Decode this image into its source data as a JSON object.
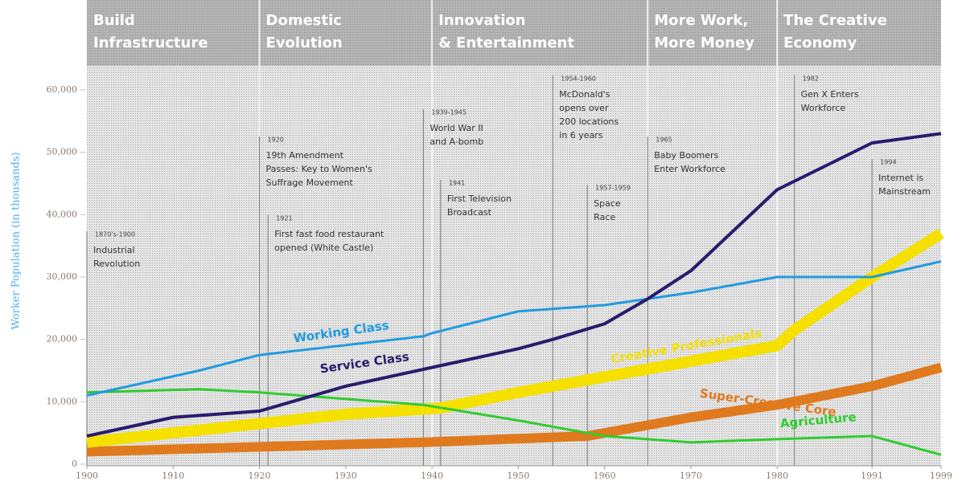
{
  "chart_data": {
    "type": "line",
    "y_axis_label": "Worker Population (in thousands)",
    "xlim": [
      1900,
      1999
    ],
    "xticks": [
      1900,
      1910,
      1920,
      1930,
      1940,
      1950,
      1960,
      1970,
      1980,
      1991,
      1999
    ],
    "ylim": [
      0,
      60000
    ],
    "yticks": [
      0,
      {
        "value": 10000,
        "label": "10,000"
      },
      {
        "value": 20000,
        "label": "20,000"
      },
      {
        "value": 30000,
        "label": "30,000"
      },
      {
        "value": 40000,
        "label": "40,000"
      },
      {
        "value": 50000,
        "label": "50,000"
      },
      {
        "value": 60000,
        "label": "60,000"
      }
    ],
    "eras": [
      {
        "x": 1900,
        "lines": [
          "Build",
          "Infrastructure"
        ]
      },
      {
        "x": 1920,
        "lines": [
          "Domestic",
          "Evolution"
        ]
      },
      {
        "x": 1940,
        "lines": [
          "Innovation",
          "& Entertainment"
        ]
      },
      {
        "x": 1965,
        "lines": [
          "More Work,",
          "More Money"
        ]
      },
      {
        "x": 1980,
        "lines": [
          "The Creative",
          "Economy"
        ]
      }
    ],
    "annotations": [
      {
        "x": 1900,
        "date": "1870's-1900",
        "lines": [
          "Industrial",
          "Revolution"
        ]
      },
      {
        "x": 1920,
        "date": "1920",
        "lines": [
          "19th Amendment",
          "Passes: Key to Women's",
          "Suffrage Movement"
        ]
      },
      {
        "x": 1921,
        "date": "1921",
        "lines": [
          "First fast food restaurant",
          "opened (White Castle)"
        ]
      },
      {
        "x": 1939,
        "date": "1939-1945",
        "lines": [
          "World War II",
          "and A-bomb"
        ]
      },
      {
        "x": 1941,
        "date": "1941",
        "lines": [
          "First Television",
          "Broadcast"
        ]
      },
      {
        "x": 1954,
        "date": "1954-1960",
        "lines": [
          "McDonald's",
          "opens over",
          "200 locations",
          "in 6 years"
        ]
      },
      {
        "x": 1958,
        "date": "1957-1959",
        "lines": [
          "Space",
          "Race"
        ]
      },
      {
        "x": 1965,
        "date": "1965",
        "lines": [
          "Baby Boomers",
          "Enter Workforce"
        ]
      },
      {
        "x": 1982,
        "date": "1982",
        "lines": [
          "Gen X Enters",
          "Workforce"
        ]
      },
      {
        "x": 1991,
        "date": "1994",
        "lines": [
          "Internet is",
          "Mainstream"
        ]
      }
    ],
    "series": [
      {
        "name": "Super-Creative Core",
        "color": "#e07a1e",
        "line_width": 12,
        "x": [
          1900,
          1939,
          1958,
          1970,
          1980,
          1991,
          1999
        ],
        "values": [
          2000,
          3500,
          4500,
          7500,
          9500,
          12500,
          15500
        ]
      },
      {
        "name": "Creative Professionals",
        "color": "#f5e000",
        "line_width": 14,
        "x": [
          1900,
          1920,
          1930,
          1941,
          1950,
          1960,
          1970,
          1980,
          1982,
          1991,
          1999
        ],
        "values": [
          3500,
          6500,
          8000,
          9000,
          11500,
          14000,
          16500,
          19000,
          21500,
          30000,
          37000
        ]
      },
      {
        "name": "Agriculture",
        "color": "#2ecc2e",
        "line_width": 3,
        "x": [
          1900,
          1913,
          1920,
          1939,
          1950,
          1960,
          1970,
          1980,
          1991,
          1999
        ],
        "values": [
          11500,
          12000,
          11500,
          9500,
          7000,
          4500,
          3500,
          4000,
          4500,
          1500
        ]
      },
      {
        "name": "Working Class",
        "color": "#1e9be0",
        "line_width": 3,
        "x": [
          1900,
          1913,
          1920,
          1939,
          1940,
          1950,
          1960,
          1965,
          1970,
          1980,
          1991,
          1999
        ],
        "values": [
          11000,
          15000,
          17500,
          20500,
          21000,
          24500,
          25500,
          26500,
          27500,
          30000,
          30000,
          32500
        ]
      },
      {
        "name": "Service Class",
        "color": "#2a1a6e",
        "line_width": 4,
        "x": [
          1900,
          1910,
          1920,
          1930,
          1940,
          1950,
          1954,
          1960,
          1965,
          1970,
          1980,
          1991,
          1999
        ],
        "values": [
          4500,
          7500,
          8500,
          12500,
          15500,
          18500,
          20000,
          22500,
          26500,
          31000,
          44000,
          51500,
          53000
        ]
      }
    ]
  }
}
